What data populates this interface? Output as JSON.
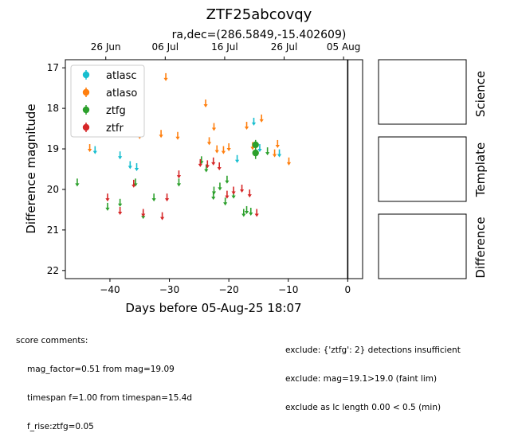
{
  "chart_data": {
    "type": "scatter",
    "title": "ZTF25abcovqy",
    "subtitle": "ra,dec=(286.5849,-15.402609)",
    "xlabel": "Days before 05-Aug-25 18:07",
    "ylabel": "Difference magnitude",
    "xlim": [
      -47.5,
      2.5
    ],
    "ylim": [
      22.2,
      16.8
    ],
    "y_inverted": true,
    "xticks": [
      -40,
      -30,
      -20,
      -10,
      0
    ],
    "xtick_labels": [
      "−40",
      "−30",
      "−20",
      "−10",
      "0"
    ],
    "yticks": [
      17,
      18,
      19,
      20,
      21,
      22
    ],
    "ytick_labels": [
      "17",
      "18",
      "19",
      "20",
      "21",
      "22"
    ],
    "top_axis_ticks": [
      {
        "x": -40.7,
        "label": "26 Jun"
      },
      {
        "x": -30.7,
        "label": "06 Jul"
      },
      {
        "x": -20.7,
        "label": "16 Jul"
      },
      {
        "x": -10.7,
        "label": "26 Jul"
      },
      {
        "x": -0.7,
        "label": "05 Aug"
      }
    ],
    "vertical_line_x": 0,
    "grid": false,
    "legend_position": "top-left",
    "series": [
      {
        "name": "atlasc",
        "color": "#17becf",
        "points": [
          {
            "x": -42.5,
            "y": 19.05,
            "limit": true
          },
          {
            "x": -38.3,
            "y": 19.18,
            "limit": true
          },
          {
            "x": -36.6,
            "y": 19.42,
            "limit": true
          },
          {
            "x": -35.5,
            "y": 19.47,
            "limit": true
          },
          {
            "x": -18.6,
            "y": 19.27,
            "limit": true
          },
          {
            "x": -15.8,
            "y": 18.35,
            "limit": true
          },
          {
            "x": -14.8,
            "y": 19.0,
            "limit": true
          },
          {
            "x": -11.5,
            "y": 19.13,
            "limit": true
          }
        ]
      },
      {
        "name": "atlaso",
        "color": "#ff7f0e",
        "points": [
          {
            "x": -43.4,
            "y": 19.0,
            "limit": true
          },
          {
            "x": -35.0,
            "y": 18.68,
            "limit": true
          },
          {
            "x": -31.4,
            "y": 18.65,
            "limit": true
          },
          {
            "x": -30.6,
            "y": 17.25,
            "limit": true
          },
          {
            "x": -28.6,
            "y": 18.7,
            "limit": true
          },
          {
            "x": -23.9,
            "y": 17.9,
            "limit": true
          },
          {
            "x": -23.3,
            "y": 18.83,
            "limit": true
          },
          {
            "x": -22.5,
            "y": 18.48,
            "limit": true
          },
          {
            "x": -22.0,
            "y": 19.03,
            "limit": true
          },
          {
            "x": -20.9,
            "y": 19.05,
            "limit": true
          },
          {
            "x": -20.0,
            "y": 18.98,
            "limit": true
          },
          {
            "x": -17.0,
            "y": 18.45,
            "limit": true
          },
          {
            "x": -16.0,
            "y": 18.95,
            "limit": true
          },
          {
            "x": -14.5,
            "y": 18.27,
            "limit": true
          },
          {
            "x": -12.3,
            "y": 19.13,
            "limit": true
          },
          {
            "x": -11.8,
            "y": 18.9,
            "limit": true
          },
          {
            "x": -9.9,
            "y": 19.33,
            "limit": true
          }
        ]
      },
      {
        "name": "ztfg",
        "color": "#2ca02c",
        "points": [
          {
            "x": -45.5,
            "y": 19.85,
            "limit": true
          },
          {
            "x": -40.4,
            "y": 20.45,
            "limit": true
          },
          {
            "x": -38.3,
            "y": 20.35,
            "limit": true
          },
          {
            "x": -35.7,
            "y": 19.85,
            "limit": true
          },
          {
            "x": -34.4,
            "y": 20.65,
            "limit": true
          },
          {
            "x": -32.6,
            "y": 20.22,
            "limit": true
          },
          {
            "x": -28.4,
            "y": 19.85,
            "limit": true
          },
          {
            "x": -24.6,
            "y": 19.3,
            "limit": true
          },
          {
            "x": -23.8,
            "y": 19.5,
            "limit": true
          },
          {
            "x": -22.6,
            "y": 20.18,
            "limit": true
          },
          {
            "x": -22.5,
            "y": 20.05,
            "limit": true
          },
          {
            "x": -21.5,
            "y": 19.95,
            "limit": true
          },
          {
            "x": -20.6,
            "y": 20.32,
            "limit": true
          },
          {
            "x": -20.3,
            "y": 19.78,
            "limit": true
          },
          {
            "x": -19.2,
            "y": 20.15,
            "limit": true
          },
          {
            "x": -17.5,
            "y": 20.6,
            "limit": true
          },
          {
            "x": -17.0,
            "y": 20.53,
            "limit": true
          },
          {
            "x": -16.3,
            "y": 20.57,
            "limit": true
          },
          {
            "x": -15.5,
            "y": 18.9,
            "err": 0.12
          },
          {
            "x": -15.5,
            "y": 19.1,
            "err": 0.15
          },
          {
            "x": -13.5,
            "y": 19.08,
            "limit": true
          }
        ]
      },
      {
        "name": "ztfr",
        "color": "#d62728",
        "points": [
          {
            "x": -40.4,
            "y": 20.22,
            "limit": true
          },
          {
            "x": -38.3,
            "y": 20.55,
            "limit": true
          },
          {
            "x": -36.0,
            "y": 19.88,
            "limit": true
          },
          {
            "x": -34.4,
            "y": 20.6,
            "limit": true
          },
          {
            "x": -31.2,
            "y": 20.68,
            "limit": true
          },
          {
            "x": -30.4,
            "y": 20.22,
            "limit": true
          },
          {
            "x": -28.4,
            "y": 19.65,
            "limit": true
          },
          {
            "x": -24.8,
            "y": 19.37,
            "limit": true
          },
          {
            "x": -23.6,
            "y": 19.4,
            "limit": true
          },
          {
            "x": -22.6,
            "y": 19.33,
            "limit": true
          },
          {
            "x": -21.6,
            "y": 19.45,
            "limit": true
          },
          {
            "x": -20.3,
            "y": 20.15,
            "limit": true
          },
          {
            "x": -19.2,
            "y": 20.05,
            "limit": true
          },
          {
            "x": -17.8,
            "y": 20.0,
            "limit": true
          },
          {
            "x": -16.5,
            "y": 20.12,
            "limit": true
          },
          {
            "x": -15.3,
            "y": 20.6,
            "limit": true
          }
        ]
      }
    ]
  },
  "panels": {
    "science": "Science",
    "template": "Template",
    "difference": "Difference"
  },
  "comments": {
    "heading": "score comments:",
    "score_lines": [
      "mag_factor=0.51 from mag=19.09",
      "timespan f=1.00 from timespan=15.4d",
      "f_rise:ztfg=0.05"
    ],
    "exclude_lines": [
      "exclude: {'ztfg': 2} detections insufficient",
      "exclude: mag=19.1>19.0 (faint lim)",
      "exclude as lc length 0.00 < 0.5 (min)"
    ]
  }
}
